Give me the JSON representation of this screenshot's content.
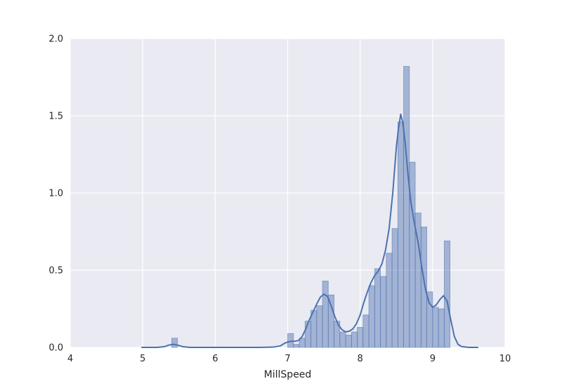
{
  "chart_data": {
    "type": "bar",
    "subtype": "histogram-with-kde",
    "title": "",
    "xlabel": "MillSpeed",
    "ylabel": "",
    "xlim": [
      4,
      10
    ],
    "ylim": [
      0,
      2.0
    ],
    "xticks": [
      4,
      5,
      6,
      7,
      8,
      9,
      10
    ],
    "xtick_labels": [
      "4",
      "5",
      "6",
      "7",
      "8",
      "9",
      "10"
    ],
    "yticks": [
      0,
      0.5,
      1.0,
      1.5,
      2.0
    ],
    "ytick_labels": [
      "0.0",
      "0.5",
      "1.0",
      "1.5",
      "2.0"
    ],
    "grid": true,
    "legend": "none",
    "colors": {
      "background": "#eaeaf2",
      "grid": "#ffffff",
      "bar_fill": "#4c72b0",
      "bar_opacity": 0.45,
      "bar_edge": "#4c72b0",
      "kde_line": "#4c72b0"
    },
    "histogram": {
      "bin_width": 0.08,
      "bins": [
        {
          "x0": 5.4,
          "value": 0.06
        },
        {
          "x0": 7.0,
          "value": 0.09
        },
        {
          "x0": 7.08,
          "value": 0.02
        },
        {
          "x0": 7.16,
          "value": 0.06
        },
        {
          "x0": 7.24,
          "value": 0.17
        },
        {
          "x0": 7.32,
          "value": 0.24
        },
        {
          "x0": 7.4,
          "value": 0.27
        },
        {
          "x0": 7.48,
          "value": 0.43
        },
        {
          "x0": 7.56,
          "value": 0.34
        },
        {
          "x0": 7.64,
          "value": 0.17
        },
        {
          "x0": 7.72,
          "value": 0.1
        },
        {
          "x0": 7.8,
          "value": 0.08
        },
        {
          "x0": 7.88,
          "value": 0.1
        },
        {
          "x0": 7.96,
          "value": 0.13
        },
        {
          "x0": 8.04,
          "value": 0.21
        },
        {
          "x0": 8.12,
          "value": 0.4
        },
        {
          "x0": 8.2,
          "value": 0.51
        },
        {
          "x0": 8.28,
          "value": 0.46
        },
        {
          "x0": 8.36,
          "value": 0.61
        },
        {
          "x0": 8.44,
          "value": 0.77
        },
        {
          "x0": 8.52,
          "value": 1.46
        },
        {
          "x0": 8.6,
          "value": 1.82
        },
        {
          "x0": 8.68,
          "value": 1.2
        },
        {
          "x0": 8.76,
          "value": 0.87
        },
        {
          "x0": 8.84,
          "value": 0.78
        },
        {
          "x0": 8.92,
          "value": 0.36
        },
        {
          "x0": 9.0,
          "value": 0.26
        },
        {
          "x0": 9.08,
          "value": 0.25
        },
        {
          "x0": 9.16,
          "value": 0.69
        }
      ]
    },
    "kde": {
      "x": [
        4.98,
        5.2,
        5.3,
        5.36,
        5.42,
        5.48,
        5.55,
        5.65,
        6.0,
        6.6,
        6.8,
        6.9,
        6.95,
        7.0,
        7.05,
        7.1,
        7.15,
        7.2,
        7.25,
        7.3,
        7.35,
        7.4,
        7.45,
        7.5,
        7.55,
        7.6,
        7.65,
        7.7,
        7.75,
        7.8,
        7.85,
        7.9,
        7.95,
        8.0,
        8.05,
        8.1,
        8.15,
        8.2,
        8.25,
        8.3,
        8.35,
        8.4,
        8.45,
        8.5,
        8.53,
        8.56,
        8.59,
        8.62,
        8.66,
        8.7,
        8.75,
        8.8,
        8.85,
        8.9,
        8.95,
        9.0,
        9.05,
        9.1,
        9.15,
        9.2,
        9.25,
        9.3,
        9.35,
        9.4,
        9.5,
        9.63
      ],
      "y": [
        0.0,
        0.0,
        0.005,
        0.015,
        0.02,
        0.015,
        0.005,
        0.0,
        0.0,
        0.0,
        0.002,
        0.01,
        0.025,
        0.035,
        0.04,
        0.04,
        0.045,
        0.07,
        0.12,
        0.18,
        0.23,
        0.28,
        0.325,
        0.345,
        0.33,
        0.27,
        0.2,
        0.145,
        0.115,
        0.1,
        0.105,
        0.12,
        0.155,
        0.21,
        0.29,
        0.36,
        0.42,
        0.465,
        0.495,
        0.54,
        0.63,
        0.77,
        1.0,
        1.3,
        1.42,
        1.51,
        1.45,
        1.33,
        1.12,
        0.94,
        0.8,
        0.68,
        0.52,
        0.38,
        0.29,
        0.26,
        0.275,
        0.31,
        0.335,
        0.3,
        0.18,
        0.07,
        0.02,
        0.005,
        0.0,
        0.0
      ]
    }
  }
}
